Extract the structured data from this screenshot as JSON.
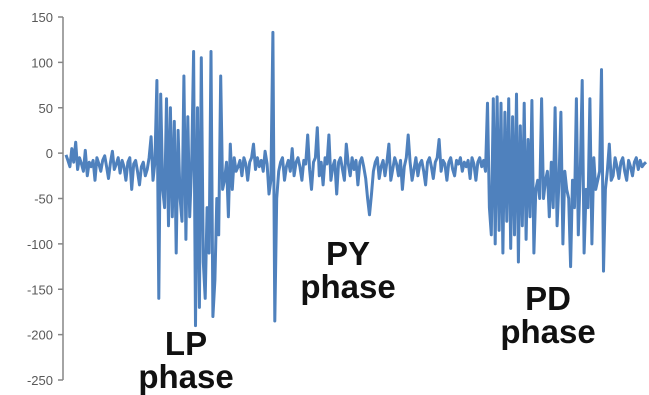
{
  "chart_data": {
    "type": "line",
    "title": "",
    "xlabel": "",
    "ylabel": "",
    "ylim": [
      -250,
      150
    ],
    "yticks": [
      150,
      100,
      50,
      0,
      -50,
      -100,
      -150,
      -200,
      -250
    ],
    "grid": false,
    "legend": "none",
    "line_color": "#4f81bd",
    "axis_color": "#868686",
    "series": [
      {
        "values": [
          -2,
          -8,
          -15,
          5,
          -10,
          12,
          -18,
          -5,
          -12,
          -20,
          3,
          -25,
          -10,
          -15,
          -8,
          -30,
          -5,
          -12,
          -20,
          -8,
          -3,
          -15,
          -28,
          -10,
          2,
          -18,
          -12,
          -5,
          -22,
          -8,
          -15,
          -30,
          -10,
          -5,
          -40,
          -12,
          -8,
          -20,
          -35,
          -15,
          -10,
          -25,
          -18,
          -5,
          18,
          -30,
          -10,
          80,
          -160,
          65,
          -40,
          -60,
          60,
          -80,
          50,
          -70,
          35,
          -110,
          25,
          -50,
          -75,
          85,
          -95,
          40,
          -70,
          -10,
          112,
          -190,
          50,
          -170,
          105,
          -120,
          -160,
          -60,
          -110,
          112,
          -180,
          -140,
          -50,
          -90,
          85,
          -40,
          -30,
          -10,
          -70,
          10,
          -40,
          -5,
          -20,
          -15,
          -8,
          -25,
          -5,
          -12,
          -30,
          -10,
          -5,
          10,
          -18,
          -5,
          -15,
          -8,
          -20,
          2,
          -12,
          -45,
          -30,
          133,
          -185,
          -50,
          -20,
          -10,
          -5,
          -30,
          -15,
          -8,
          -20,
          5,
          -25,
          -10,
          -5,
          -15,
          -30,
          -8,
          -12,
          20,
          -18,
          -40,
          -10,
          -5,
          28,
          -25,
          -10,
          -35,
          -5,
          -12,
          20,
          -30,
          -15,
          -8,
          -45,
          -10,
          -5,
          -18,
          -30,
          10,
          -12,
          -25,
          -5,
          -18,
          -8,
          -35,
          -10,
          -5,
          -15,
          -28,
          -50,
          -68,
          -45,
          -20,
          -10,
          -5,
          -28,
          -15,
          -8,
          -25,
          -10,
          10,
          -30,
          -18,
          -5,
          -12,
          -25,
          -8,
          -40,
          -15,
          -5,
          20,
          -10,
          -30,
          -18,
          -5,
          -25,
          -12,
          -8,
          -20,
          -35,
          -10,
          -5,
          -15,
          -28,
          -10,
          -5,
          15,
          -20,
          -8,
          -12,
          -30,
          -10,
          -5,
          -18,
          -25,
          -8,
          -12,
          -5,
          -20,
          -10,
          -15,
          -8,
          -28,
          -5,
          -12,
          -30,
          -10,
          -5,
          -15,
          -8,
          -20,
          55,
          -60,
          -90,
          60,
          -100,
          62,
          -85,
          55,
          -110,
          45,
          -75,
          60,
          -105,
          40,
          -90,
          65,
          -120,
          30,
          -80,
          55,
          -95,
          15,
          -70,
          58,
          -110,
          -40,
          -30,
          -50,
          60,
          -50,
          -30,
          -20,
          -70,
          -10,
          -60,
          50,
          -80,
          -30,
          45,
          -100,
          -20,
          -40,
          -50,
          -125,
          -30,
          -60,
          60,
          -90,
          -20,
          80,
          -110,
          -40,
          -60,
          60,
          -100,
          -5,
          -40,
          -30,
          -20,
          92,
          -130,
          -40,
          -20,
          10,
          -30,
          -25,
          -5,
          -15,
          -28,
          -10,
          -5,
          -20,
          -30,
          -8,
          -15,
          -25,
          -10,
          -5,
          -18,
          -8,
          -15,
          -12,
          -10
        ]
      }
    ],
    "annotations": [
      {
        "lines": [
          "LP",
          "phase"
        ]
      },
      {
        "lines": [
          "PY",
          "phase"
        ]
      },
      {
        "lines": [
          "PD",
          "phase"
        ]
      }
    ]
  }
}
